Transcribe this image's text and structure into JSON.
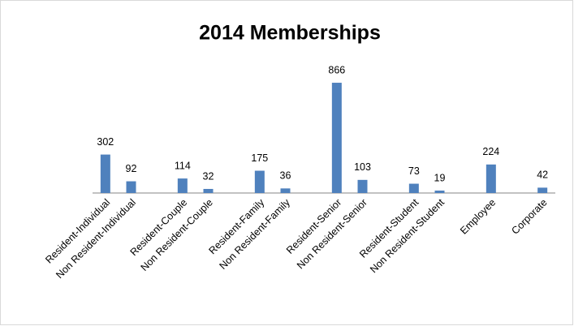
{
  "chart_data": {
    "type": "bar",
    "title": "2014 Memberships",
    "categories": [
      "Resident-Individual",
      "Non Resident-Individual",
      null,
      "Resident-Couple",
      "Non Resident-Couple",
      null,
      "Resident-Family",
      "Non Resident-Family",
      null,
      "Resident-Senior",
      "Non Resident-Senior",
      null,
      "Resident-Student",
      "Non Resident-Student",
      null,
      "Employee",
      null,
      "Corporate"
    ],
    "values": [
      302,
      92,
      null,
      114,
      32,
      null,
      175,
      36,
      null,
      866,
      103,
      null,
      73,
      19,
      null,
      224,
      null,
      42
    ],
    "color": "#4f81bd",
    "ylim": [
      0,
      1000
    ]
  }
}
